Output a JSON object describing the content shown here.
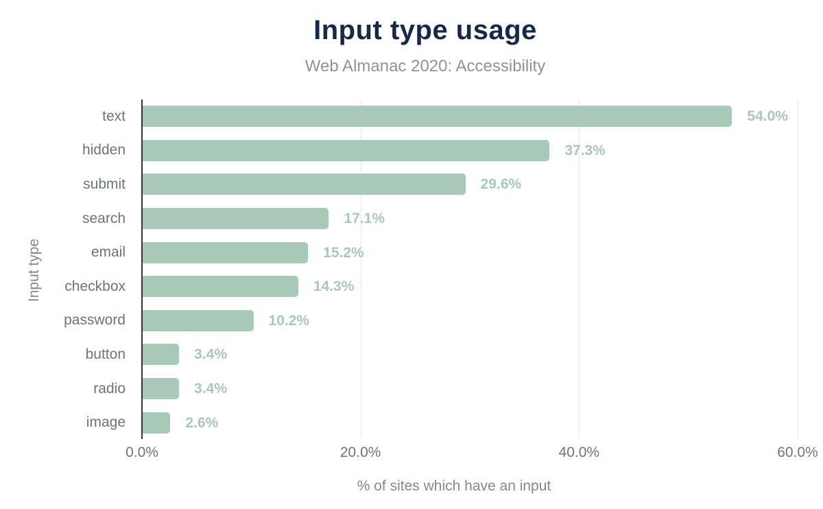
{
  "header": {
    "title": "Input type usage",
    "subtitle": "Web Almanac 2020: Accessibility"
  },
  "colors": {
    "bar": "#a9c9b8",
    "value_label": "#a9c9b8",
    "title_text": "#16294c",
    "subtitle_text": "#8f9396",
    "category_text": "#6d7378",
    "tick_text": "#707579",
    "axis_line": "#30353a",
    "gridline": "#e4e6e6",
    "background": "#ffffff"
  },
  "chart_data": {
    "type": "bar",
    "orientation": "horizontal",
    "title": "Input type usage",
    "subtitle": "Web Almanac 2020: Accessibility",
    "xlabel": "% of sites which have an input",
    "ylabel": "Input type",
    "categories": [
      "text",
      "hidden",
      "submit",
      "search",
      "email",
      "checkbox",
      "password",
      "button",
      "radio",
      "image"
    ],
    "values": [
      54.0,
      37.3,
      29.6,
      17.1,
      15.2,
      14.3,
      10.2,
      3.4,
      3.4,
      2.6
    ],
    "value_labels": [
      "54.0%",
      "37.3%",
      "29.6%",
      "17.1%",
      "15.2%",
      "14.3%",
      "10.2%",
      "3.4%",
      "3.4%",
      "2.6%"
    ],
    "xlim": [
      0,
      60
    ],
    "xticks": [
      0,
      20,
      40,
      60
    ],
    "xtick_labels": [
      "0.0%",
      "20.0%",
      "40.0%",
      "60.0%"
    ],
    "grid": "vertical-gridlines-at-ticks",
    "legend": "none",
    "bar_corner_radius_right_px": 5
  }
}
